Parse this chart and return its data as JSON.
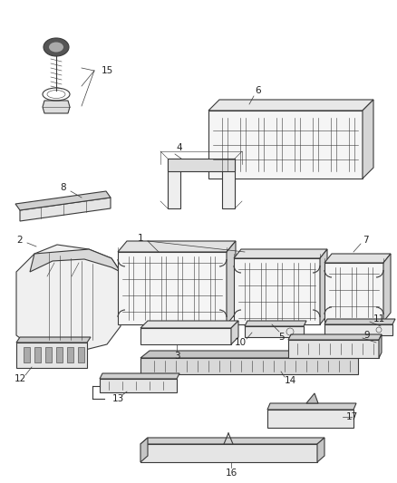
{
  "background_color": "#ffffff",
  "figure_width": 4.38,
  "figure_height": 5.33,
  "dpi": 100,
  "line_color": "#3a3a3a",
  "line_width": 0.8,
  "thin_line": 0.4,
  "label_fontsize": 7.5
}
